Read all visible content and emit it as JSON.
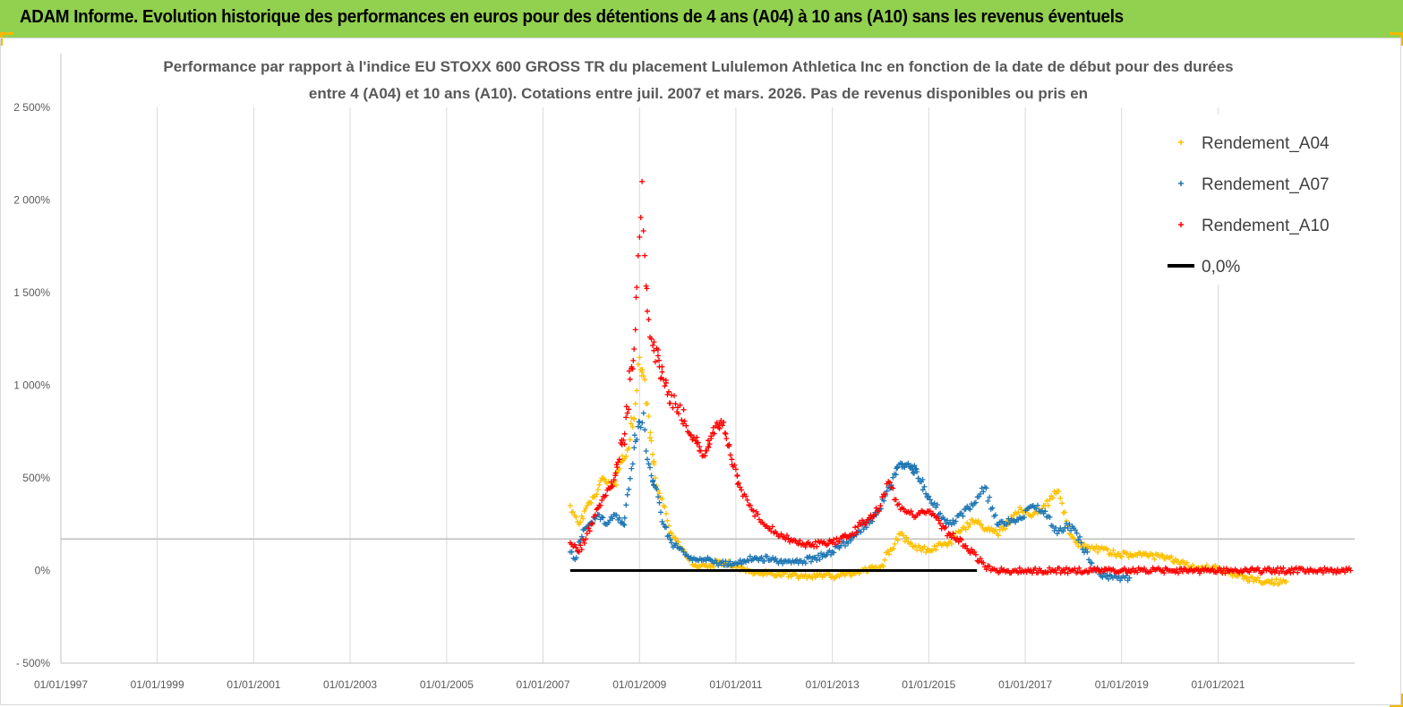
{
  "banner": {
    "title": "ADAM Informe. Evolution historique des performances en euros pour des détentions de 4 ans (A04) à 10 ans (A10) sans les revenus éventuels",
    "background": "#92d050"
  },
  "chart_data": {
    "type": "scatter",
    "title_lines": [
      "Performance par rapport à l'indice EU STOXX 600 GROSS TR  du placement Lululemon Athletica Inc en fonction de la date de début pour des durées",
      "entre 4 (A04) et 10 ans (A10).  Cotations entre juil. 2007 et mars. 2026. Pas de revenus disponibles ou pris en"
    ],
    "xlabel": "",
    "ylabel": "",
    "x_tick_labels": [
      "01/01/1997",
      "01/01/1999",
      "01/01/2001",
      "01/01/2003",
      "01/01/2005",
      "01/01/2007",
      "01/01/2009",
      "01/01/2011",
      "01/01/2013",
      "01/01/2015",
      "01/01/2017",
      "01/01/2019",
      "01/01/2021"
    ],
    "xlim": [
      "1997-01-01",
      "2023-11-01"
    ],
    "y_tick_labels": [
      "- 500%",
      "0%",
      "500%",
      "1 000%",
      "1 500%",
      "2 000%",
      "2 500%"
    ],
    "y_tick_values": [
      -500,
      0,
      500,
      1000,
      1500,
      2000,
      2500
    ],
    "ylim": [
      -500,
      2500
    ],
    "y_unit": "%",
    "grid": "vertical",
    "legend_position": "top-right",
    "series": [
      {
        "name": "Rendement_A04",
        "color": "#ffc000",
        "marker": "+",
        "points": [
          [
            "2007-07-26",
            350
          ],
          [
            "2007-10-01",
            250
          ],
          [
            "2007-12-01",
            350
          ],
          [
            "2008-02-01",
            400
          ],
          [
            "2008-04-01",
            500
          ],
          [
            "2008-06-01",
            450
          ],
          [
            "2008-08-01",
            550
          ],
          [
            "2008-10-01",
            650
          ],
          [
            "2008-12-01",
            900
          ],
          [
            "2009-01-01",
            1150
          ],
          [
            "2009-02-01",
            1050
          ],
          [
            "2009-03-01",
            900
          ],
          [
            "2009-04-01",
            700
          ],
          [
            "2009-05-01",
            500
          ],
          [
            "2009-07-01",
            350
          ],
          [
            "2009-09-01",
            200
          ],
          [
            "2009-11-01",
            130
          ],
          [
            "2010-01-01",
            70
          ],
          [
            "2010-03-01",
            30
          ],
          [
            "2010-06-01",
            20
          ],
          [
            "2010-09-01",
            50
          ],
          [
            "2011-01-01",
            20
          ],
          [
            "2011-06-01",
            -10
          ],
          [
            "2012-01-01",
            -20
          ],
          [
            "2012-06-01",
            -30
          ],
          [
            "2013-01-01",
            -30
          ],
          [
            "2013-06-01",
            -20
          ],
          [
            "2014-01-01",
            20
          ],
          [
            "2014-06-01",
            200
          ],
          [
            "2014-09-01",
            130
          ],
          [
            "2015-01-01",
            110
          ],
          [
            "2015-06-01",
            150
          ],
          [
            "2015-12-01",
            270
          ],
          [
            "2016-06-01",
            200
          ],
          [
            "2016-12-01",
            330
          ],
          [
            "2017-03-01",
            300
          ],
          [
            "2017-06-01",
            350
          ],
          [
            "2017-09-01",
            430
          ],
          [
            "2017-12-01",
            200
          ],
          [
            "2018-03-01",
            130
          ],
          [
            "2018-06-01",
            120
          ],
          [
            "2018-12-01",
            90
          ],
          [
            "2019-06-01",
            80
          ],
          [
            "2020-01-01",
            70
          ],
          [
            "2020-06-01",
            20
          ],
          [
            "2021-01-01",
            10
          ],
          [
            "2021-06-01",
            -30
          ],
          [
            "2022-01-01",
            -60
          ],
          [
            "2022-06-01",
            -60
          ]
        ]
      },
      {
        "name": "Rendement_A07",
        "color": "#1f77b4",
        "marker": "+",
        "points": [
          [
            "2007-07-26",
            100
          ],
          [
            "2007-09-01",
            60
          ],
          [
            "2007-11-01",
            220
          ],
          [
            "2008-01-01",
            260
          ],
          [
            "2008-03-01",
            300
          ],
          [
            "2008-05-01",
            250
          ],
          [
            "2008-07-01",
            300
          ],
          [
            "2008-09-01",
            250
          ],
          [
            "2008-11-01",
            550
          ],
          [
            "2009-01-01",
            800
          ],
          [
            "2009-02-01",
            850
          ],
          [
            "2009-03-01",
            600
          ],
          [
            "2009-05-01",
            450
          ],
          [
            "2009-07-01",
            250
          ],
          [
            "2009-09-01",
            150
          ],
          [
            "2009-12-01",
            100
          ],
          [
            "2010-03-01",
            60
          ],
          [
            "2010-06-01",
            70
          ],
          [
            "2010-09-01",
            40
          ],
          [
            "2011-01-01",
            40
          ],
          [
            "2011-06-01",
            70
          ],
          [
            "2012-01-01",
            50
          ],
          [
            "2012-06-01",
            50
          ],
          [
            "2013-01-01",
            100
          ],
          [
            "2013-06-01",
            180
          ],
          [
            "2013-12-01",
            300
          ],
          [
            "2014-03-01",
            450
          ],
          [
            "2014-06-01",
            580
          ],
          [
            "2014-09-01",
            560
          ],
          [
            "2015-01-01",
            400
          ],
          [
            "2015-06-01",
            250
          ],
          [
            "2015-12-01",
            350
          ],
          [
            "2016-03-01",
            450
          ],
          [
            "2016-06-01",
            250
          ],
          [
            "2016-12-01",
            280
          ],
          [
            "2017-03-01",
            350
          ],
          [
            "2017-06-01",
            320
          ],
          [
            "2017-09-01",
            200
          ],
          [
            "2017-12-01",
            250
          ],
          [
            "2018-03-01",
            150
          ],
          [
            "2018-06-01",
            10
          ],
          [
            "2018-09-01",
            -30
          ],
          [
            "2019-01-01",
            -40
          ],
          [
            "2019-03-01",
            -40
          ]
        ]
      },
      {
        "name": "Rendement_A10",
        "color": "#ff0000",
        "marker": "+",
        "points": [
          [
            "2007-07-26",
            150
          ],
          [
            "2007-10-01",
            100
          ],
          [
            "2007-12-01",
            200
          ],
          [
            "2008-02-01",
            300
          ],
          [
            "2008-04-01",
            400
          ],
          [
            "2008-06-01",
            450
          ],
          [
            "2008-08-01",
            600
          ],
          [
            "2008-10-01",
            850
          ],
          [
            "2008-12-01",
            1300
          ],
          [
            "2009-01-01",
            1800
          ],
          [
            "2009-01-20",
            2100
          ],
          [
            "2009-02-10",
            1700
          ],
          [
            "2009-03-01",
            1400
          ],
          [
            "2009-04-01",
            1250
          ],
          [
            "2009-06-01",
            1100
          ],
          [
            "2009-08-01",
            950
          ],
          [
            "2009-10-01",
            900
          ],
          [
            "2010-01-01",
            750
          ],
          [
            "2010-03-01",
            700
          ],
          [
            "2010-05-01",
            620
          ],
          [
            "2010-08-01",
            780
          ],
          [
            "2010-10-01",
            800
          ],
          [
            "2010-12-01",
            600
          ],
          [
            "2011-02-01",
            450
          ],
          [
            "2011-05-01",
            330
          ],
          [
            "2011-08-01",
            250
          ],
          [
            "2012-01-01",
            180
          ],
          [
            "2012-06-01",
            140
          ],
          [
            "2013-01-01",
            150
          ],
          [
            "2013-06-01",
            200
          ],
          [
            "2014-01-01",
            350
          ],
          [
            "2014-03-01",
            480
          ],
          [
            "2014-06-01",
            330
          ],
          [
            "2014-09-01",
            300
          ],
          [
            "2015-01-01",
            320
          ],
          [
            "2015-06-01",
            200
          ],
          [
            "2015-12-01",
            100
          ],
          [
            "2016-03-01",
            20
          ],
          [
            "2016-06-01",
            0
          ],
          [
            "2017-01-01",
            0
          ],
          [
            "2018-01-01",
            0
          ],
          [
            "2019-01-01",
            0
          ],
          [
            "2020-01-01",
            0
          ],
          [
            "2021-01-01",
            0
          ],
          [
            "2022-01-01",
            0
          ],
          [
            "2023-01-01",
            0
          ],
          [
            "2023-10-01",
            0
          ]
        ]
      },
      {
        "name": "0,0%",
        "color": "#000000",
        "marker": "line",
        "points": [
          [
            "2007-07-26",
            0
          ],
          [
            "2016-01-01",
            0
          ]
        ]
      }
    ],
    "annotations": [
      {
        "type": "horizontal-line",
        "y": 170,
        "from": "1997-01-01",
        "to": "2023-11-01",
        "color": "#bfbfbf"
      }
    ]
  }
}
